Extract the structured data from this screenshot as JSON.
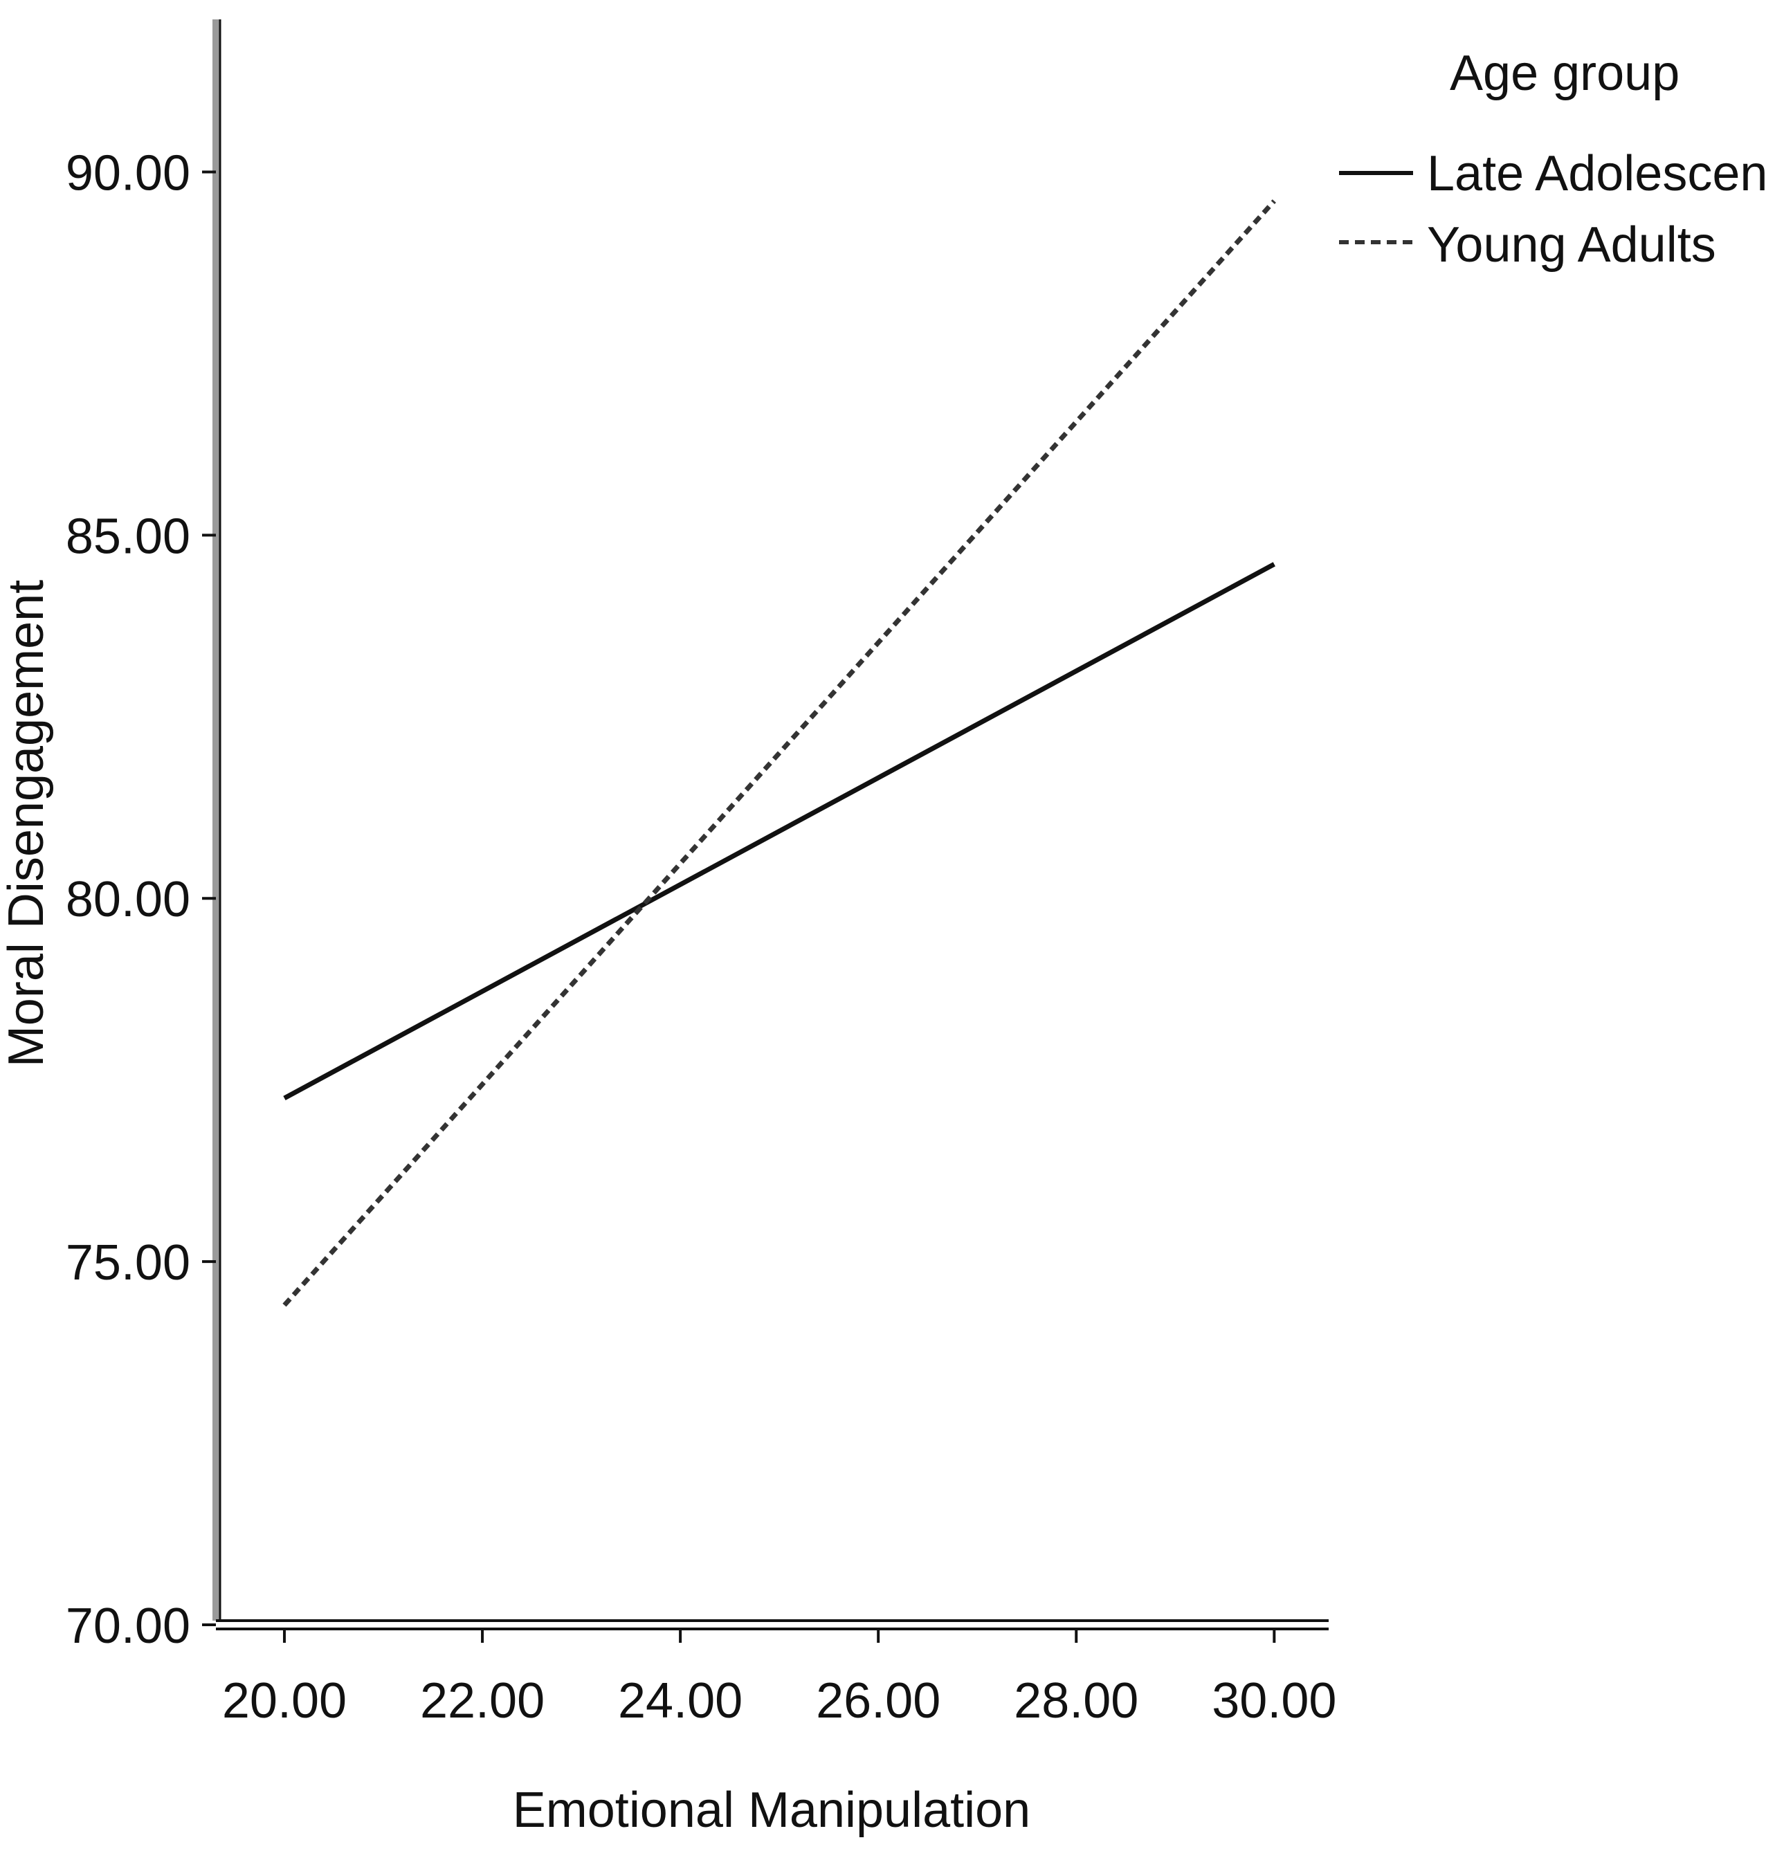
{
  "chart_data": {
    "type": "line",
    "title": "",
    "xlabel": "Emotional Manipulation",
    "ylabel": "Moral Disengagement",
    "xlim": [
      19.35,
      30.55
    ],
    "ylim": [
      70,
      92.1
    ],
    "x_ticks": [
      20,
      22,
      24,
      26,
      28,
      30
    ],
    "y_ticks": [
      70,
      75,
      80,
      85,
      90
    ],
    "x_tick_labels": [
      "20.00",
      "22.00",
      "24.00",
      "26.00",
      "28.00",
      "30.00"
    ],
    "y_tick_labels": [
      "70.00",
      "75.00",
      "80.00",
      "85.00",
      "90.00"
    ],
    "grid": false,
    "legend": {
      "title": "Age group",
      "position": "top-right"
    },
    "series": [
      {
        "name": "Late Adolescents",
        "style": "solid",
        "color": "#111111",
        "x": [
          20,
          30
        ],
        "y": [
          77.25,
          84.6
        ]
      },
      {
        "name": "Young Adults",
        "style": "dashed",
        "color": "#333333",
        "x": [
          20,
          30
        ],
        "y": [
          74.4,
          89.6
        ]
      }
    ]
  }
}
